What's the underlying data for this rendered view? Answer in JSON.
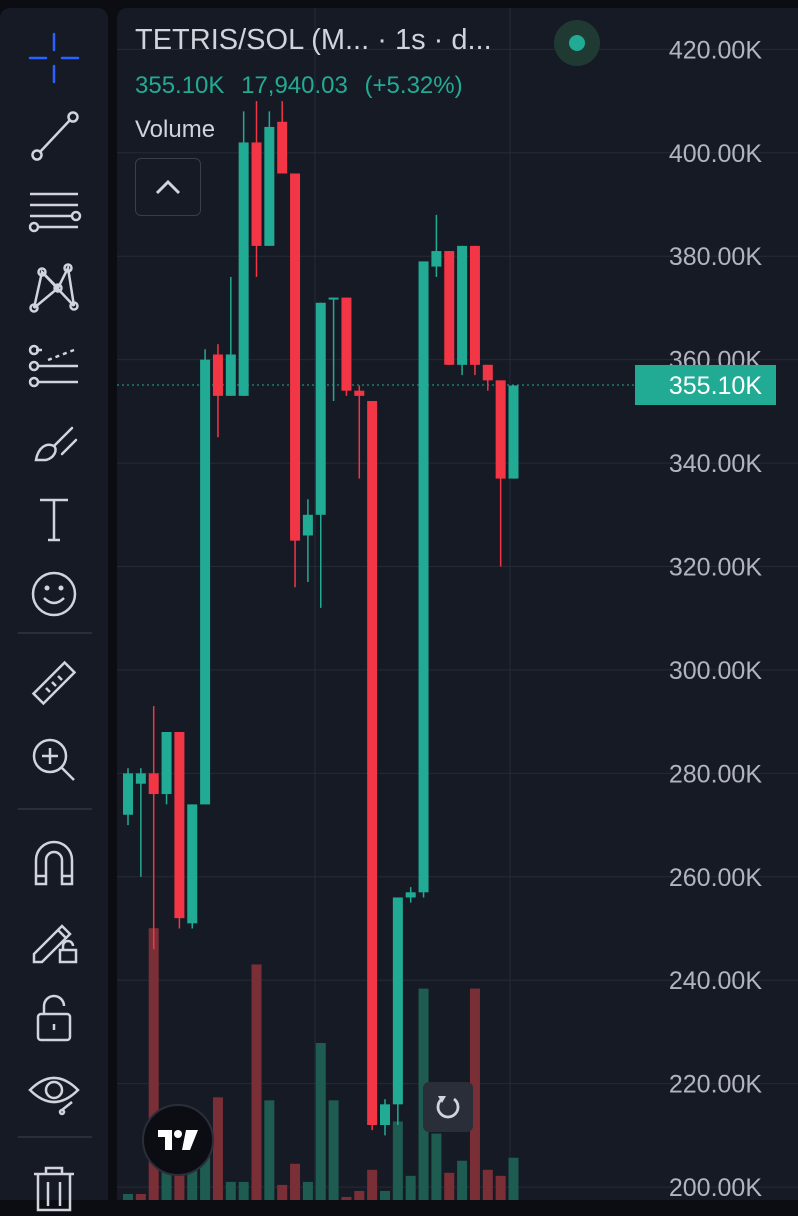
{
  "header": {
    "symbol": "TETRIS/SOL (M... · 1s · d...",
    "volume_value": "355.10K",
    "last_price": "17,940.03",
    "change": "(+5.32%)",
    "volume_label": "Volume"
  },
  "colors": {
    "up": "#22ab94",
    "down": "#f23645",
    "volume_up": "#1e5c52",
    "volume_down": "#7a2f37",
    "background": "#161a25",
    "grid": "#252a35",
    "axis_text": "#b2b5be",
    "price_line": "#22ab94"
  },
  "toolbar": {
    "icons": [
      "crosshair-icon",
      "trend-line-icon",
      "fib-retracement-icon",
      "pattern-icon",
      "prediction-icon",
      "brush-icon",
      "text-icon",
      "emoji-icon",
      "ruler-icon",
      "zoom-in-icon",
      "magnet-icon",
      "lock-drawing-icon",
      "lock-icon",
      "eye-icon",
      "trash-icon"
    ]
  },
  "chart_data": {
    "type": "candlestick",
    "title": "TETRIS/SOL (M... · 1s · d...",
    "y_axis": {
      "ticks": [
        420000,
        400000,
        380000,
        360000,
        340000,
        320000,
        300000,
        280000,
        260000,
        240000,
        220000,
        200000
      ],
      "tick_labels": [
        "420.00K",
        "400.00K",
        "380.00K",
        "360.00K",
        "340.00K",
        "320.00K",
        "300.00K",
        "280.00K",
        "260.00K",
        "240.00K",
        "220.00K",
        "200.00K"
      ],
      "range": [
        197500,
        428000
      ]
    },
    "last_price": 355100,
    "last_price_label": "355.10K",
    "grid": true,
    "candles": [
      {
        "o": 272000,
        "h": 281000,
        "l": 270000,
        "c": 280000
      },
      {
        "o": 278000,
        "h": 281000,
        "l": 260000,
        "c": 280000
      },
      {
        "o": 280000,
        "h": 293000,
        "l": 246000,
        "c": 276000
      },
      {
        "o": 276000,
        "h": 288000,
        "l": 274000,
        "c": 288000
      },
      {
        "o": 288000,
        "h": 288000,
        "l": 250000,
        "c": 252000
      },
      {
        "o": 251000,
        "h": 274000,
        "l": 250000,
        "c": 274000
      },
      {
        "o": 274000,
        "h": 362000,
        "l": 274000,
        "c": 360000
      },
      {
        "o": 361000,
        "h": 363000,
        "l": 345000,
        "c": 353000
      },
      {
        "o": 353000,
        "h": 376000,
        "l": 353000,
        "c": 361000
      },
      {
        "o": 353000,
        "h": 408000,
        "l": 353000,
        "c": 402000
      },
      {
        "o": 402000,
        "h": 410000,
        "l": 376000,
        "c": 382000
      },
      {
        "o": 382000,
        "h": 408000,
        "l": 382000,
        "c": 405000
      },
      {
        "o": 406000,
        "h": 410000,
        "l": 396000,
        "c": 396000
      },
      {
        "o": 396000,
        "h": 396000,
        "l": 316000,
        "c": 325000
      },
      {
        "o": 326000,
        "h": 333000,
        "l": 317000,
        "c": 330000
      },
      {
        "o": 330000,
        "h": 371000,
        "l": 312000,
        "c": 371000
      },
      {
        "o": 372000,
        "h": 372000,
        "l": 352000,
        "c": 372000
      },
      {
        "o": 372000,
        "h": 372000,
        "l": 353000,
        "c": 354000
      },
      {
        "o": 354000,
        "h": 355000,
        "l": 337000,
        "c": 353000
      },
      {
        "o": 352000,
        "h": 352000,
        "l": 211000,
        "c": 212000
      },
      {
        "o": 212000,
        "h": 217000,
        "l": 210000,
        "c": 216000
      },
      {
        "o": 216000,
        "h": 256000,
        "l": 212000,
        "c": 256000
      },
      {
        "o": 256000,
        "h": 258000,
        "l": 255000,
        "c": 257000
      },
      {
        "o": 257000,
        "h": 378000,
        "l": 256000,
        "c": 379000
      },
      {
        "o": 378000,
        "h": 388000,
        "l": 376000,
        "c": 381000
      },
      {
        "o": 381000,
        "h": 381000,
        "l": 359000,
        "c": 359000
      },
      {
        "o": 359000,
        "h": 382000,
        "l": 357000,
        "c": 382000
      },
      {
        "o": 382000,
        "h": 382000,
        "l": 357000,
        "c": 359000
      },
      {
        "o": 359000,
        "h": 359000,
        "l": 354000,
        "c": 356000
      },
      {
        "o": 356000,
        "h": 356000,
        "l": 320000,
        "c": 337000
      },
      {
        "o": 337000,
        "h": 355000,
        "l": 337000,
        "c": 355000
      }
    ],
    "volume": [
      {
        "v": 0.02,
        "dir": "up"
      },
      {
        "v": 0.02,
        "dir": "down"
      },
      {
        "v": 0.9,
        "dir": "down"
      },
      {
        "v": 0.1,
        "dir": "up"
      },
      {
        "v": 0.2,
        "dir": "down"
      },
      {
        "v": 0.14,
        "dir": "up"
      },
      {
        "v": 0.2,
        "dir": "up"
      },
      {
        "v": 0.34,
        "dir": "down"
      },
      {
        "v": 0.06,
        "dir": "up"
      },
      {
        "v": 0.06,
        "dir": "up"
      },
      {
        "v": 0.78,
        "dir": "down"
      },
      {
        "v": 0.33,
        "dir": "up"
      },
      {
        "v": 0.05,
        "dir": "down"
      },
      {
        "v": 0.12,
        "dir": "down"
      },
      {
        "v": 0.06,
        "dir": "up"
      },
      {
        "v": 0.52,
        "dir": "up"
      },
      {
        "v": 0.33,
        "dir": "up"
      },
      {
        "v": 0.01,
        "dir": "down"
      },
      {
        "v": 0.03,
        "dir": "down"
      },
      {
        "v": 0.1,
        "dir": "down"
      },
      {
        "v": 0.03,
        "dir": "up"
      },
      {
        "v": 0.26,
        "dir": "up"
      },
      {
        "v": 0.08,
        "dir": "up"
      },
      {
        "v": 0.7,
        "dir": "up"
      },
      {
        "v": 0.22,
        "dir": "up"
      },
      {
        "v": 0.09,
        "dir": "down"
      },
      {
        "v": 0.13,
        "dir": "up"
      },
      {
        "v": 0.7,
        "dir": "down"
      },
      {
        "v": 0.1,
        "dir": "down"
      },
      {
        "v": 0.08,
        "dir": "down"
      },
      {
        "v": 0.14,
        "dir": "up"
      }
    ]
  },
  "buttons": {
    "collapse": "chevron-up-icon",
    "reset_scale": "reset-icon",
    "logo": "tradingview-logo"
  }
}
